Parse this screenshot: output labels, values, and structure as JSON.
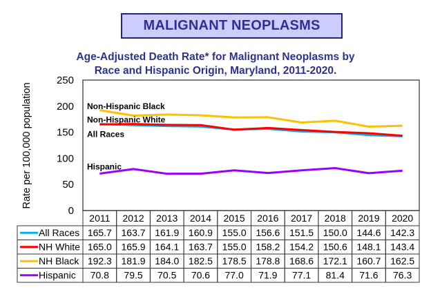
{
  "header": {
    "title": "MALIGNANT NEOPLASMS",
    "subtitle_line1": "Age-Adjusted Death Rate* for Malignant Neoplasms by",
    "subtitle_line2": "Race and Hispanic Origin, Maryland, 2011-2020."
  },
  "chart_data": {
    "type": "line",
    "title": "Age-Adjusted Death Rate* for Malignant Neoplasms by Race and Hispanic Origin, Maryland, 2011-2020.",
    "xlabel": "",
    "ylabel": "Rate per 100,000 population",
    "ylim": [
      0,
      250
    ],
    "yticks": [
      0,
      50,
      100,
      150,
      200,
      250
    ],
    "grid": true,
    "x": [
      "2011",
      "2012",
      "2013",
      "2014",
      "2015",
      "2016",
      "2017",
      "2018",
      "2019",
      "2020"
    ],
    "series": [
      {
        "name": "All Races",
        "color": "#00B0F0",
        "label": "All Races",
        "values": [
          165.7,
          163.7,
          161.9,
          160.9,
          155.0,
          156.6,
          151.5,
          150.0,
          144.6,
          142.3
        ]
      },
      {
        "name": "NH White",
        "color": "#FF0000",
        "label": "Non-Hispanic White",
        "values": [
          165.0,
          165.9,
          164.1,
          163.7,
          155.0,
          158.2,
          154.2,
          150.6,
          148.1,
          143.4
        ]
      },
      {
        "name": "NH Black",
        "color": "#FFC000",
        "label": "Non-Hispanic Black",
        "values": [
          192.3,
          181.9,
          184.0,
          182.5,
          178.5,
          178.8,
          168.6,
          172.1,
          160.7,
          162.5
        ]
      },
      {
        "name": "Hispanic",
        "color": "#9900FF",
        "label": "Hispanic",
        "values": [
          70.8,
          79.5,
          70.5,
          70.6,
          77.0,
          71.9,
          77.1,
          81.4,
          71.6,
          76.3
        ]
      }
    ],
    "series_label_values": {
      "Non-Hispanic Black": 200,
      "Non-Hispanic White": 174,
      "All Races": 146,
      "Hispanic": 84
    },
    "data_table": true,
    "legend": "table-left"
  }
}
